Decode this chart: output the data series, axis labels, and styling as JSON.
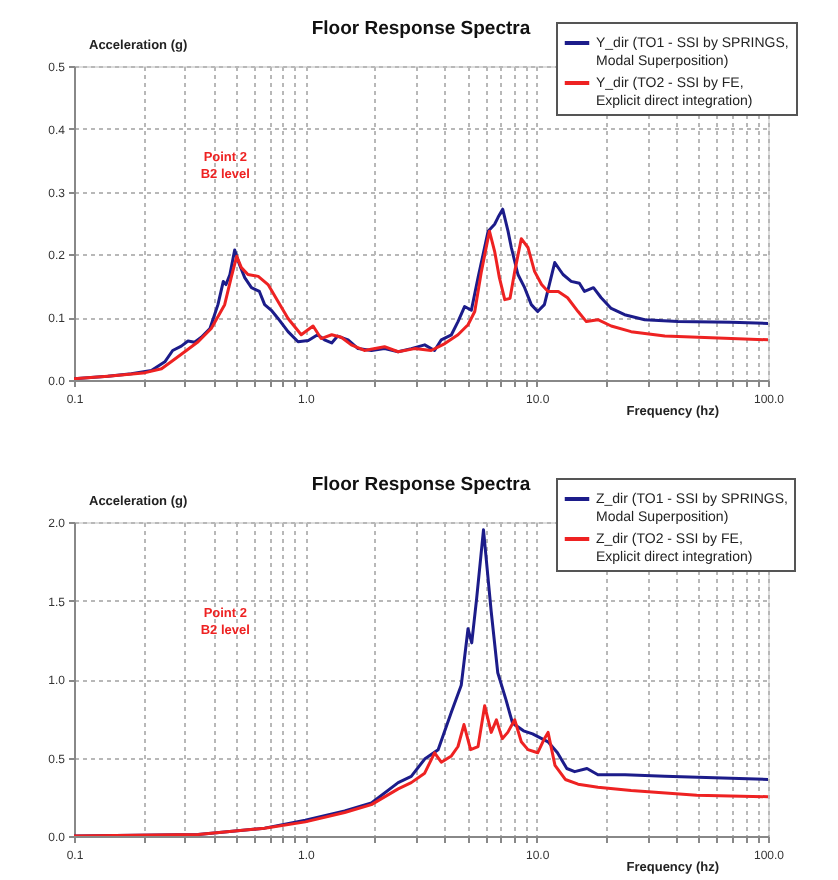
{
  "chart_data": [
    {
      "type": "line",
      "title": "Floor Response Spectra",
      "xlabel": "Frequency (hz)",
      "ylabel": "Acceleration (g)",
      "log": "x",
      "grid": true,
      "legend": "top right",
      "xlim": [
        0.1,
        100
      ],
      "ylim": [
        0,
        0.5
      ],
      "xticks": [
        0.1,
        {
          "value": 0.2,
          "label": null
        },
        {
          "value": 0.3,
          "label": null
        },
        {
          "value": 0.4,
          "label": null
        },
        {
          "value": 0.5,
          "label": null
        },
        {
          "value": 0.6,
          "label": null
        },
        {
          "value": 0.7,
          "label": null
        },
        {
          "value": 0.8,
          "label": null
        },
        {
          "value": 0.9,
          "label": null
        },
        {
          "value": 1,
          "label": "1.0"
        },
        {
          "value": 2,
          "label": null
        },
        {
          "value": 3,
          "label": null
        },
        {
          "value": 4,
          "label": null
        },
        {
          "value": 5,
          "label": null
        },
        {
          "value": 6,
          "label": null
        },
        {
          "value": 7,
          "label": null
        },
        {
          "value": 8,
          "label": null
        },
        {
          "value": 9,
          "label": null
        },
        {
          "value": 10,
          "label": "10.0"
        },
        {
          "value": 20,
          "label": null
        },
        {
          "value": 30,
          "label": null
        },
        {
          "value": 40,
          "label": null
        },
        {
          "value": 50,
          "label": null
        },
        {
          "value": 60,
          "label": null
        },
        {
          "value": 70,
          "label": null
        },
        {
          "value": 80,
          "label": null
        },
        {
          "value": 90,
          "label": null
        },
        {
          "value": 100,
          "label": "100.0"
        }
      ],
      "yticks": [
        {
          "value": 0,
          "label": "0.0"
        },
        0.1,
        0.2,
        0.3,
        0.4,
        0.5
      ],
      "annotations": [
        "Point 2",
        "B2 level"
      ],
      "series": [
        {
          "name": "Y_dir (TO1 - SSI by SPRINGS, Modal Superposition)",
          "color": "#1c1c8a",
          "x": [
            0.1,
            0.14,
            0.177,
            0.216,
            0.247,
            0.267,
            0.291,
            0.311,
            0.332,
            0.355,
            0.387,
            0.419,
            0.442,
            0.454,
            0.472,
            0.495,
            0.519,
            0.547,
            0.585,
            0.633,
            0.667,
            0.713,
            0.762,
            0.842,
            0.93,
            1.03,
            1.13,
            1.21,
            1.3,
            1.38,
            1.53,
            1.69,
            1.93,
            2.2,
            2.52,
            2.87,
            3.28,
            3.62,
            3.87,
            4.28,
            4.57,
            4.88,
            5.22,
            5.58,
            6.17,
            6.58,
            6.81,
            7.13,
            7.52,
            7.77,
            8.3,
            8.87,
            9.48,
            10.1,
            10.8,
            11.97,
            13.0,
            14.1,
            15.3,
            16.1,
            17.6,
            19.0,
            21.0,
            24.0,
            29.3,
            40.8,
            69.4,
            100
          ],
          "values": [
            0.002,
            0.006,
            0.01,
            0.015,
            0.029,
            0.047,
            0.054,
            0.062,
            0.06,
            0.068,
            0.082,
            0.12,
            0.157,
            0.152,
            0.168,
            0.207,
            0.184,
            0.163,
            0.147,
            0.141,
            0.12,
            0.111,
            0.098,
            0.077,
            0.061,
            0.063,
            0.072,
            0.064,
            0.059,
            0.07,
            0.064,
            0.05,
            0.047,
            0.05,
            0.045,
            0.05,
            0.056,
            0.047,
            0.064,
            0.072,
            0.093,
            0.117,
            0.111,
            0.163,
            0.237,
            0.248,
            0.259,
            0.272,
            0.237,
            0.211,
            0.168,
            0.147,
            0.12,
            0.109,
            0.12,
            0.187,
            0.168,
            0.157,
            0.154,
            0.141,
            0.147,
            0.131,
            0.114,
            0.104,
            0.096,
            0.093,
            0.092,
            0.09
          ]
        },
        {
          "name": "Y_dir (TO2 - SSI by FE, Explicit direct integration)",
          "color": "#ee2222",
          "x": [
            0.1,
            0.14,
            0.199,
            0.239,
            0.263,
            0.301,
            0.344,
            0.392,
            0.448,
            0.478,
            0.505,
            0.529,
            0.565,
            0.626,
            0.69,
            0.762,
            0.842,
            0.96,
            1.08,
            1.17,
            1.3,
            1.43,
            1.58,
            1.8,
            2.2,
            2.52,
            2.97,
            3.5,
            4.01,
            4.57,
            5.05,
            5.4,
            5.77,
            6.25,
            6.58,
            6.9,
            7.28,
            7.67,
            8.04,
            8.58,
            9.17,
            9.79,
            10.5,
            11.2,
            12.4,
            13.6,
            15.1,
            16.4,
            18.4,
            21.0,
            25.6,
            35.8,
            69.4,
            100
          ],
          "values": [
            0.002,
            0.006,
            0.011,
            0.018,
            0.029,
            0.045,
            0.061,
            0.082,
            0.12,
            0.163,
            0.197,
            0.179,
            0.168,
            0.165,
            0.152,
            0.125,
            0.098,
            0.072,
            0.086,
            0.066,
            0.072,
            0.068,
            0.056,
            0.047,
            0.053,
            0.045,
            0.05,
            0.047,
            0.058,
            0.072,
            0.088,
            0.109,
            0.173,
            0.237,
            0.205,
            0.163,
            0.128,
            0.13,
            0.173,
            0.225,
            0.211,
            0.173,
            0.152,
            0.141,
            0.141,
            0.131,
            0.109,
            0.093,
            0.096,
            0.086,
            0.077,
            0.07,
            0.066,
            0.064
          ]
        }
      ]
    },
    {
      "type": "line",
      "title": "Floor Response Spectra",
      "xlabel": "Frequency (hz)",
      "ylabel": "Acceleration (g)",
      "log": "x",
      "grid": true,
      "legend": "top right",
      "xlim": [
        0.1,
        100
      ],
      "ylim": [
        0,
        2
      ],
      "xticks": [
        0.1,
        {
          "value": 0.2,
          "label": null
        },
        {
          "value": 0.3,
          "label": null
        },
        {
          "value": 0.4,
          "label": null
        },
        {
          "value": 0.5,
          "label": null
        },
        {
          "value": 0.6,
          "label": null
        },
        {
          "value": 0.7,
          "label": null
        },
        {
          "value": 0.8,
          "label": null
        },
        {
          "value": 0.9,
          "label": null
        },
        {
          "value": 1,
          "label": "1.0"
        },
        {
          "value": 2,
          "label": null
        },
        {
          "value": 3,
          "label": null
        },
        {
          "value": 4,
          "label": null
        },
        {
          "value": 5,
          "label": null
        },
        {
          "value": 6,
          "label": null
        },
        {
          "value": 7,
          "label": null
        },
        {
          "value": 8,
          "label": null
        },
        {
          "value": 9,
          "label": null
        },
        {
          "value": 10,
          "label": "10.0"
        },
        {
          "value": 20,
          "label": null
        },
        {
          "value": 30,
          "label": null
        },
        {
          "value": 40,
          "label": null
        },
        {
          "value": 50,
          "label": null
        },
        {
          "value": 60,
          "label": null
        },
        {
          "value": 70,
          "label": null
        },
        {
          "value": 80,
          "label": null
        },
        {
          "value": 90,
          "label": null
        },
        {
          "value": 100,
          "label": "100.0"
        }
      ],
      "yticks": [
        {
          "value": 0,
          "label": "0.0"
        },
        0.5,
        {
          "value": 1,
          "label": "1.0"
        },
        1.5,
        {
          "value": 2,
          "label": "2.0"
        }
      ],
      "annotations": [
        "Point 2",
        "B2 level"
      ],
      "series": [
        {
          "name": "Z_dir (TO1 - SSI by SPRINGS, Modal Superposition)",
          "color": "#1c1c8a",
          "x": [
            0.1,
            0.344,
            0.667,
            1.0,
            1.48,
            1.93,
            2.52,
            2.87,
            3.28,
            3.75,
            4.28,
            4.72,
            5.05,
            5.24,
            5.5,
            5.89,
            6.36,
            6.79,
            7.36,
            7.86,
            8.77,
            9.6,
            11.2,
            12.3,
            13.5,
            14.6,
            16.5,
            18.4,
            24.1,
            35.8,
            100
          ],
          "values": [
            0,
            0.01,
            0.05,
            0.1,
            0.16,
            0.21,
            0.34,
            0.38,
            0.49,
            0.55,
            0.79,
            0.96,
            1.32,
            1.23,
            1.51,
            1.95,
            1.43,
            1.04,
            0.87,
            0.72,
            0.67,
            0.65,
            0.6,
            0.53,
            0.43,
            0.41,
            0.43,
            0.39,
            0.39,
            0.38,
            0.36
          ]
        },
        {
          "name": "Z_dir (TO2 - SSI by FE, Explicit direct integration)",
          "color": "#ee2222",
          "x": [
            0.1,
            0.344,
            0.667,
            1.0,
            1.48,
            1.93,
            2.52,
            2.87,
            3.28,
            3.62,
            3.87,
            4.28,
            4.57,
            4.85,
            5.18,
            5.58,
            5.96,
            6.36,
            6.7,
            7.1,
            7.5,
            8.04,
            8.58,
            9.17,
            10.1,
            10.8,
            11.2,
            12.0,
            13.3,
            15.1,
            18.4,
            25.6,
            49.2,
            100
          ],
          "values": [
            0,
            0.01,
            0.05,
            0.09,
            0.15,
            0.2,
            0.3,
            0.34,
            0.4,
            0.53,
            0.47,
            0.51,
            0.57,
            0.71,
            0.55,
            0.57,
            0.83,
            0.66,
            0.74,
            0.62,
            0.66,
            0.74,
            0.6,
            0.55,
            0.53,
            0.62,
            0.66,
            0.45,
            0.36,
            0.33,
            0.31,
            0.29,
            0.26,
            0.25
          ]
        }
      ]
    }
  ]
}
